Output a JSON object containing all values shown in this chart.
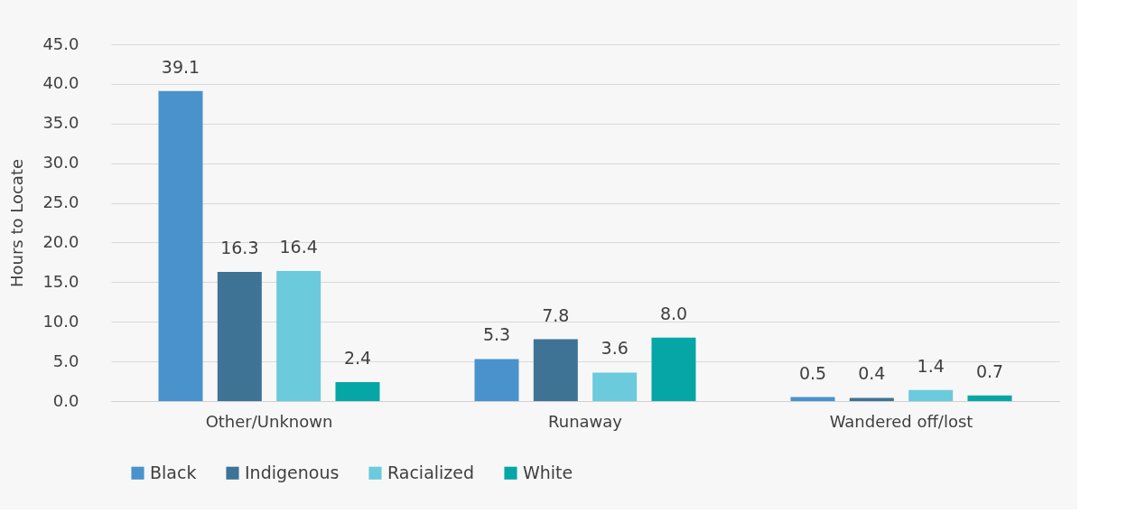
{
  "chart_data": {
    "type": "bar",
    "ylabel": "Hours to Locate",
    "categories": [
      "Other/Unknown",
      "Runaway",
      "Wandered off/lost"
    ],
    "series": [
      {
        "name": "Black",
        "color": "#4a92cc",
        "values": [
          39.1,
          5.3,
          0.5
        ]
      },
      {
        "name": "Indigenous",
        "color": "#3f7396",
        "values": [
          16.3,
          7.8,
          0.4
        ]
      },
      {
        "name": "Racialized",
        "color": "#6bcadc",
        "values": [
          16.4,
          3.6,
          1.4
        ]
      },
      {
        "name": "White",
        "color": "#07a6a6",
        "values": [
          2.4,
          8.0,
          0.7
        ]
      }
    ],
    "ylim": [
      0,
      45
    ],
    "yticks": [
      {
        "value": 0,
        "label": "0.0"
      },
      {
        "value": 5,
        "label": "5.0"
      },
      {
        "value": 10,
        "label": "10.0"
      },
      {
        "value": 15,
        "label": "15.0"
      },
      {
        "value": 20,
        "label": "20.0"
      },
      {
        "value": 25,
        "label": "25.0"
      },
      {
        "value": 30,
        "label": "30.0"
      },
      {
        "value": 35,
        "label": "35.0"
      },
      {
        "value": 40,
        "label": "40.0"
      },
      {
        "value": 45,
        "label": "45.0"
      }
    ],
    "value_labels": [
      [
        "39.1",
        "5.3",
        "0.5"
      ],
      [
        "16.3",
        "7.8",
        "0.4"
      ],
      [
        "16.4",
        "3.6",
        "1.4"
      ],
      [
        "2.4",
        "8.0",
        "0.7"
      ]
    ],
    "grid": "y",
    "legend": "bottom"
  }
}
